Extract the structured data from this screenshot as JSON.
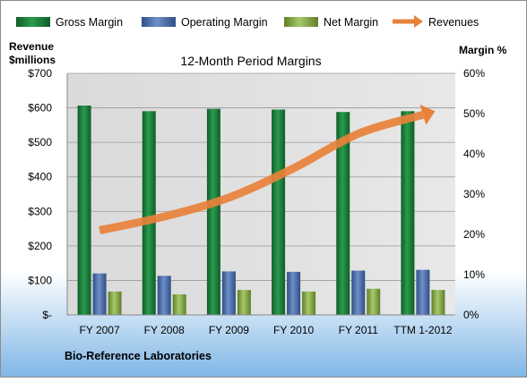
{
  "chart_data": {
    "type": "bar",
    "title": "12-Month Period Margins",
    "company": "Bio-Reference Laboratories",
    "ylabel_left": "Revenue\n$millions",
    "ylabel_right": "Margin %",
    "categories": [
      "FY 2007",
      "FY 2008",
      "FY 2009",
      "FY 2010",
      "FY 2011",
      "TTM 1-2012"
    ],
    "series": [
      {
        "name": "Gross Margin",
        "axis": "right",
        "color": "#1E7F3C",
        "values": [
          52,
          50.6,
          51.2,
          51,
          50.4,
          50.6
        ]
      },
      {
        "name": "Operating Margin",
        "axis": "right",
        "color": "#4F6EA8",
        "values": [
          10.3,
          9.7,
          10.8,
          10.7,
          11,
          11.2
        ]
      },
      {
        "name": "Net Margin",
        "axis": "right",
        "color": "#8DAF4F",
        "values": [
          5.8,
          5.1,
          6.2,
          5.8,
          6.5,
          6.2
        ]
      },
      {
        "name": "Revenues",
        "axis": "left",
        "type": "line",
        "color": "#E8813A",
        "values": [
          245,
          285,
          340,
          425,
          525,
          580
        ]
      }
    ],
    "yleft": {
      "lim": [
        0,
        700
      ],
      "ticks": [
        "$-",
        "$100",
        "$200",
        "$300",
        "$400",
        "$500",
        "$600",
        "$700"
      ]
    },
    "yright": {
      "lim": [
        0,
        60
      ],
      "ticks": [
        "0%",
        "10%",
        "20%",
        "30%",
        "40%",
        "50%",
        "60%"
      ]
    },
    "legend": "top",
    "grid": true
  }
}
